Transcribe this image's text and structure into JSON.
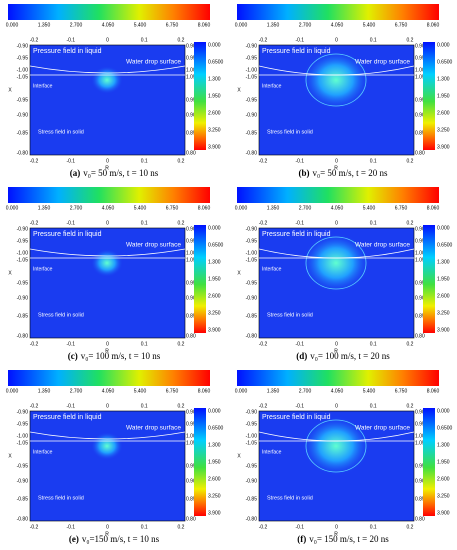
{
  "colorbar_labels": [
    "0.000",
    "1.350",
    "2.700",
    "4.050",
    "5.400",
    "6.750",
    "8.060"
  ],
  "r_ticks": [
    "-0.2",
    "-0.1",
    "0",
    "0.1",
    "0.2"
  ],
  "x_ticks_left": [
    "-0.90",
    "-0.95",
    "-1.00",
    "-1.05",
    "-0.95",
    "-0.90",
    "-0.85",
    "-0.80"
  ],
  "x_ticks_right": [
    "0.90",
    "0.95",
    "1.00",
    "1.05",
    "0.95",
    "0.90",
    "0.85",
    "0.80"
  ],
  "stress_labels": [
    "0.000",
    "0.6500",
    "1.300",
    "1.950",
    "2.600",
    "3.250",
    "3.900"
  ],
  "axis_labels": {
    "x": "X",
    "r": "R"
  },
  "annotations": {
    "pressure": "Pressure field in liquid",
    "surface": "Water drop surface",
    "interface": "Interface",
    "stress": "Stress field in solid"
  },
  "panels": [
    {
      "label": "(a)",
      "caption": "v₀= 50 m/s, t = 10 ns"
    },
    {
      "label": "(b)",
      "caption": "v₀= 50 m/s, t = 20 ns"
    },
    {
      "label": "(c)",
      "caption": "v₀= 100 m/s, t = 10 ns"
    },
    {
      "label": "(d)",
      "caption": "v₀= 100 m/s, t = 20 ns"
    },
    {
      "label": "(e)",
      "caption": "v₀=150 m/s, t = 10 ns"
    },
    {
      "label": "(f)",
      "caption": "v₀= 150 m/s, t = 20 ns"
    }
  ]
}
